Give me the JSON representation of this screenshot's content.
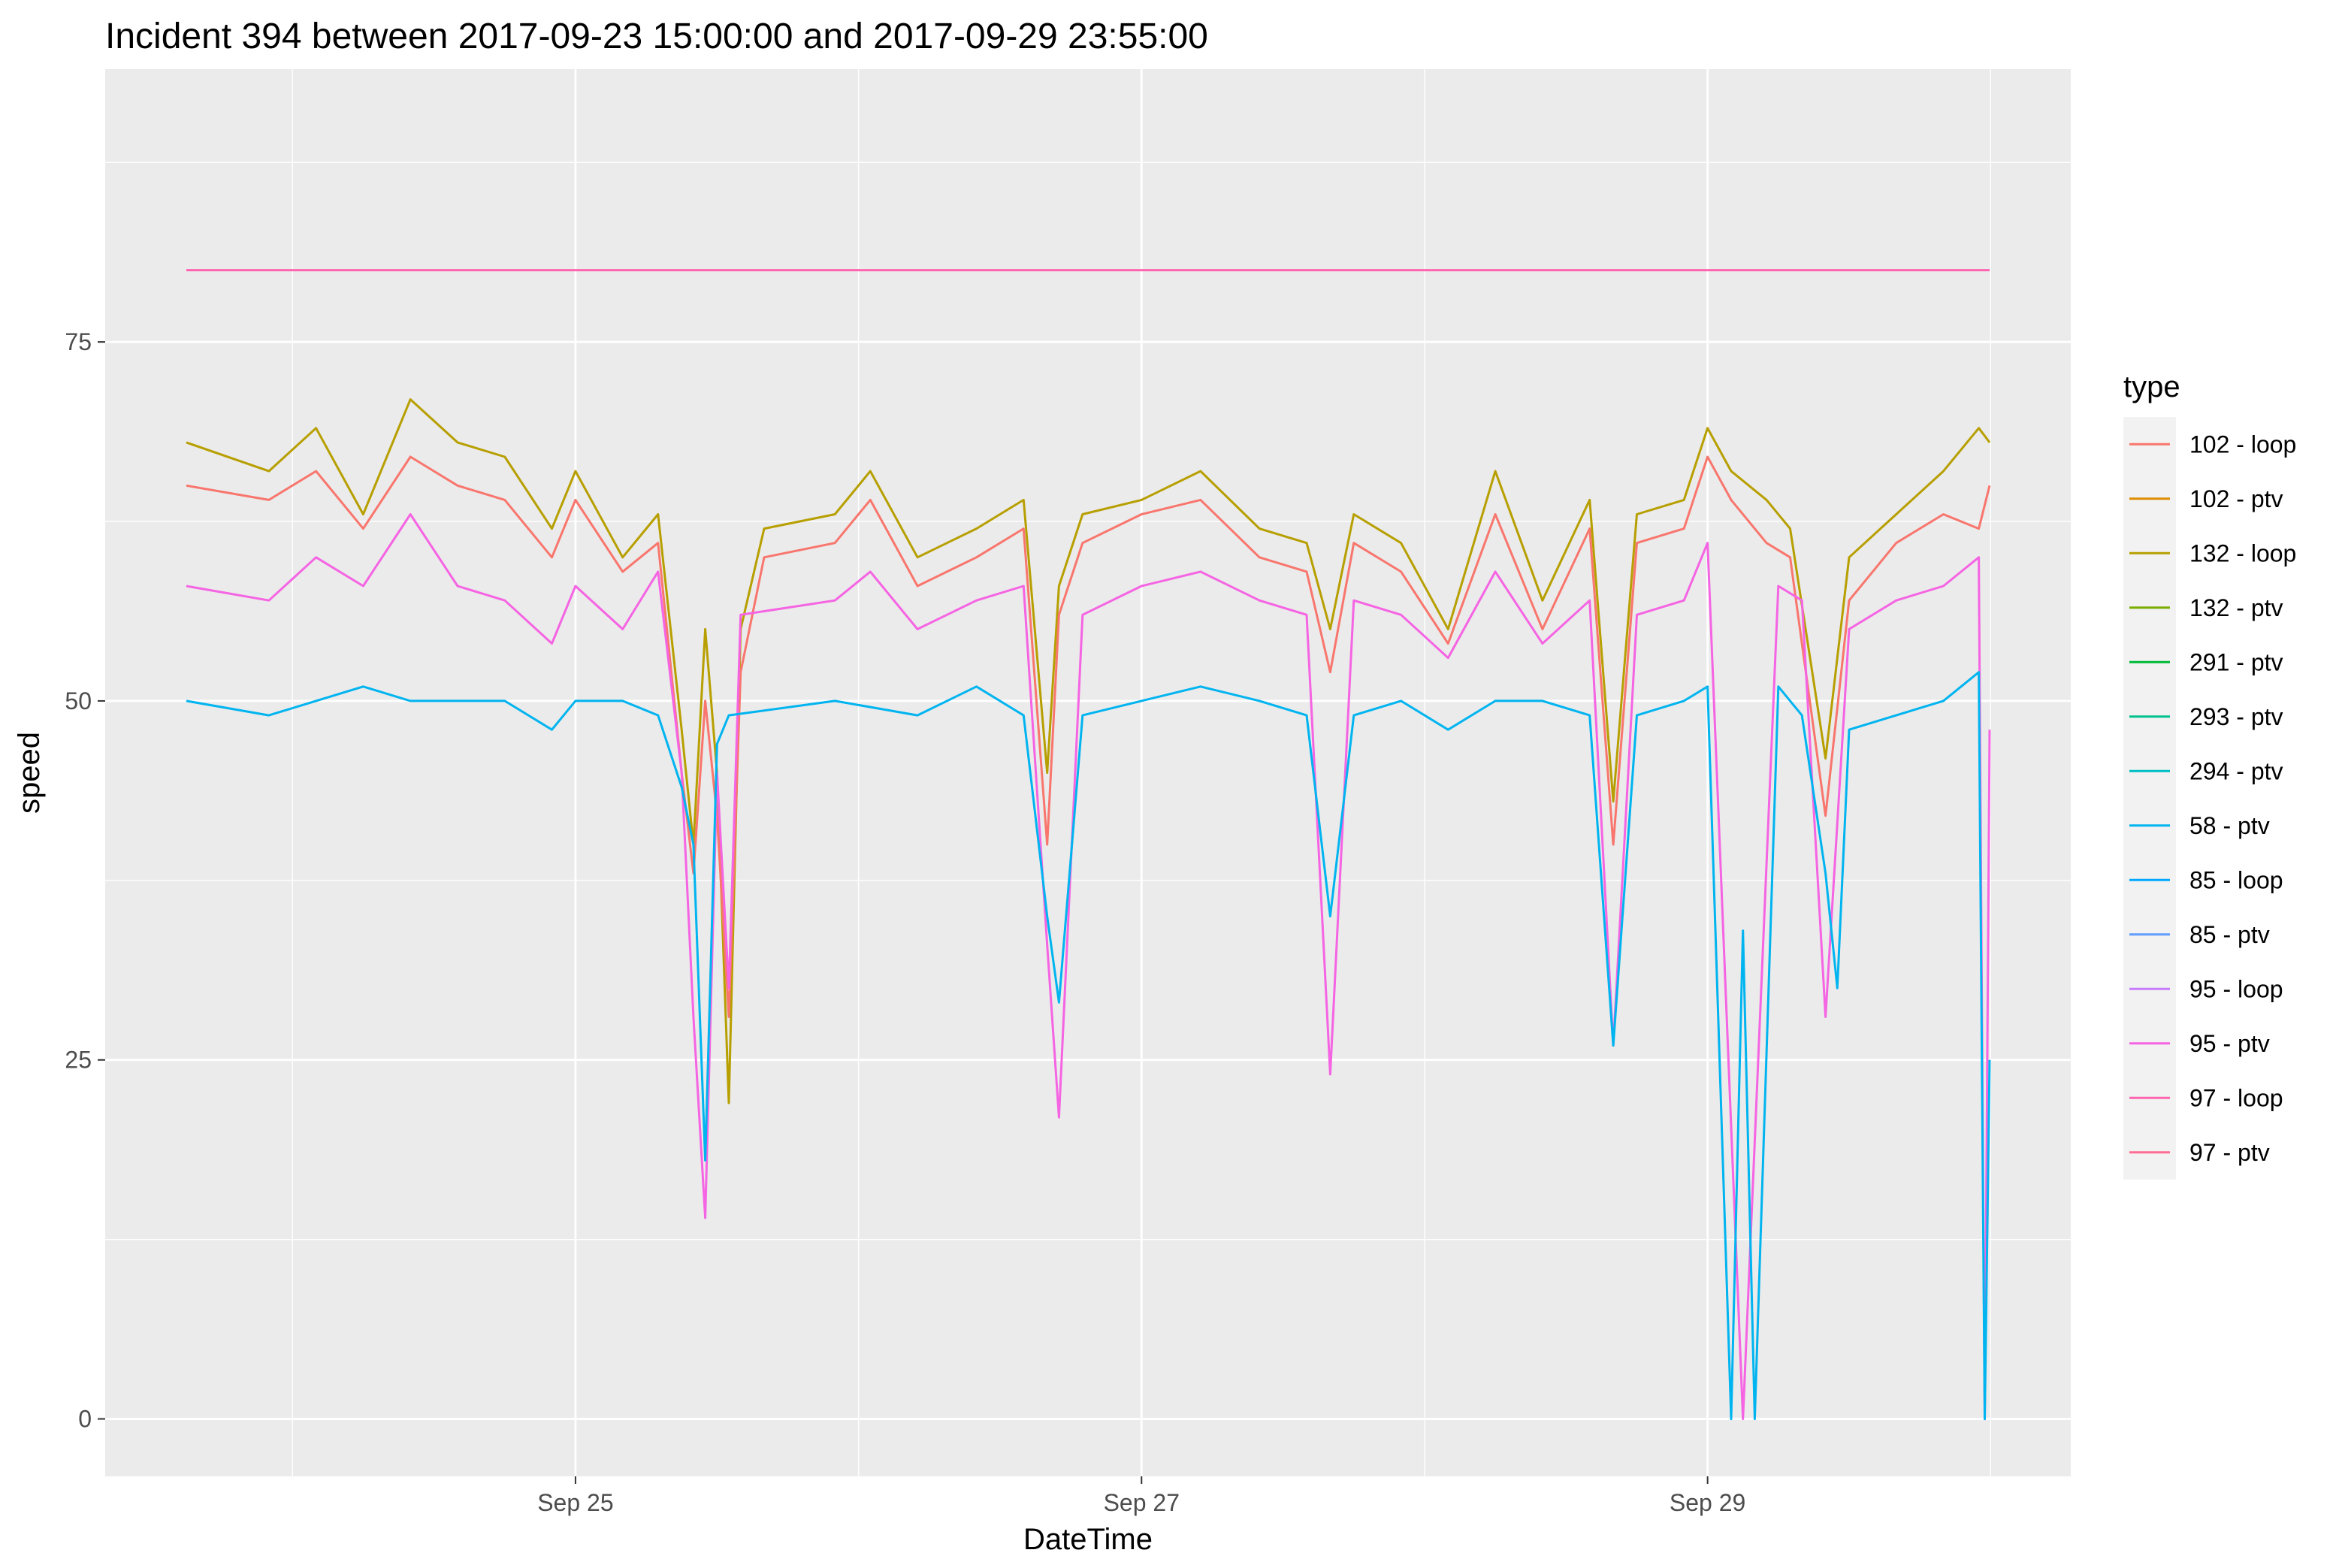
{
  "chart_data": {
    "type": "line",
    "title": "Incident 394 between 2017-09-23 15:00:00 and 2017-09-29 23:55:00",
    "xlabel": "DateTime",
    "ylabel": "speed",
    "x_range": [
      "2017-09-23 15:00:00",
      "2017-09-29 23:55:00"
    ],
    "ylim": [
      -4,
      94
    ],
    "yticks": [
      0,
      25,
      50,
      75
    ],
    "xticks": [
      {
        "date": "2017-09-25",
        "label": "Sep 25"
      },
      {
        "date": "2017-09-27",
        "label": "Sep 27"
      },
      {
        "date": "2017-09-29",
        "label": "Sep 29"
      }
    ],
    "grid": true,
    "background": "#ebebeb",
    "legend": {
      "title": "type",
      "position": "right",
      "entries": [
        {
          "label": "102 - loop",
          "color": "#F8766D"
        },
        {
          "label": "102 - ptv",
          "color": "#DE8C00"
        },
        {
          "label": "132 - loop",
          "color": "#B79F00"
        },
        {
          "label": "132 - ptv",
          "color": "#7CAE00"
        },
        {
          "label": "291 - ptv",
          "color": "#00BA38"
        },
        {
          "label": "293 - ptv",
          "color": "#00C08B"
        },
        {
          "label": "294 - ptv",
          "color": "#00BFC4"
        },
        {
          "label": "58 - ptv",
          "color": "#00B4F0"
        },
        {
          "label": "85 - loop",
          "color": "#00A9FF"
        },
        {
          "label": "85 - ptv",
          "color": "#619CFF"
        },
        {
          "label": "95 - loop",
          "color": "#C77CFF"
        },
        {
          "label": "95 - ptv",
          "color": "#F564E3"
        },
        {
          "label": "97 - loop",
          "color": "#FF64B0"
        },
        {
          "label": "97 - ptv",
          "color": "#FF6C91"
        }
      ]
    },
    "series": [
      {
        "name": "97 - ptv",
        "color": "#FF64B0",
        "points": [
          [
            "2017-09-23 15:00:00",
            80
          ],
          [
            "2017-09-29 23:55:00",
            80
          ]
        ]
      },
      {
        "name": "132 - loop",
        "color": "#B79F00",
        "points": [
          [
            "2017-09-23 15:00:00",
            68
          ],
          [
            "2017-09-23 22:00:00",
            66
          ],
          [
            "2017-09-24 02:00:00",
            69
          ],
          [
            "2017-09-24 06:00:00",
            63
          ],
          [
            "2017-09-24 10:00:00",
            71
          ],
          [
            "2017-09-24 14:00:00",
            68
          ],
          [
            "2017-09-24 18:00:00",
            67
          ],
          [
            "2017-09-24 22:00:00",
            62
          ],
          [
            "2017-09-25 00:00:00",
            66
          ],
          [
            "2017-09-25 04:00:00",
            60
          ],
          [
            "2017-09-25 07:00:00",
            63
          ],
          [
            "2017-09-25 09:00:00",
            48
          ],
          [
            "2017-09-25 10:00:00",
            40
          ],
          [
            "2017-09-25 11:00:00",
            55
          ],
          [
            "2017-09-25 12:00:00",
            45
          ],
          [
            "2017-09-25 13:00:00",
            22
          ],
          [
            "2017-09-25 14:00:00",
            55
          ],
          [
            "2017-09-25 16:00:00",
            62
          ],
          [
            "2017-09-25 22:00:00",
            63
          ],
          [
            "2017-09-26 01:00:00",
            66
          ],
          [
            "2017-09-26 05:00:00",
            60
          ],
          [
            "2017-09-26 10:00:00",
            62
          ],
          [
            "2017-09-26 14:00:00",
            64
          ],
          [
            "2017-09-26 16:00:00",
            45
          ],
          [
            "2017-09-26 17:00:00",
            58
          ],
          [
            "2017-09-26 19:00:00",
            63
          ],
          [
            "2017-09-27 00:00:00",
            64
          ],
          [
            "2017-09-27 05:00:00",
            66
          ],
          [
            "2017-09-27 10:00:00",
            62
          ],
          [
            "2017-09-27 14:00:00",
            61
          ],
          [
            "2017-09-27 16:00:00",
            55
          ],
          [
            "2017-09-27 18:00:00",
            63
          ],
          [
            "2017-09-27 22:00:00",
            61
          ],
          [
            "2017-09-28 02:00:00",
            55
          ],
          [
            "2017-09-28 06:00:00",
            66
          ],
          [
            "2017-09-28 10:00:00",
            57
          ],
          [
            "2017-09-28 14:00:00",
            64
          ],
          [
            "2017-09-28 16:00:00",
            43
          ],
          [
            "2017-09-28 18:00:00",
            63
          ],
          [
            "2017-09-28 22:00:00",
            64
          ],
          [
            "2017-09-29 00:00:00",
            69
          ],
          [
            "2017-09-29 02:00:00",
            66
          ],
          [
            "2017-09-29 05:00:00",
            64
          ],
          [
            "2017-09-29 07:00:00",
            62
          ],
          [
            "2017-09-29 10:00:00",
            46
          ],
          [
            "2017-09-29 12:00:00",
            60
          ],
          [
            "2017-09-29 16:00:00",
            63
          ],
          [
            "2017-09-29 20:00:00",
            66
          ],
          [
            "2017-09-29 23:00:00",
            69
          ],
          [
            "2017-09-29 23:55:00",
            68
          ]
        ]
      },
      {
        "name": "102 - loop",
        "color": "#F8766D",
        "points": [
          [
            "2017-09-23 15:00:00",
            65
          ],
          [
            "2017-09-23 22:00:00",
            64
          ],
          [
            "2017-09-24 02:00:00",
            66
          ],
          [
            "2017-09-24 06:00:00",
            62
          ],
          [
            "2017-09-24 10:00:00",
            67
          ],
          [
            "2017-09-24 14:00:00",
            65
          ],
          [
            "2017-09-24 18:00:00",
            64
          ],
          [
            "2017-09-24 22:00:00",
            60
          ],
          [
            "2017-09-25 00:00:00",
            64
          ],
          [
            "2017-09-25 04:00:00",
            59
          ],
          [
            "2017-09-25 07:00:00",
            61
          ],
          [
            "2017-09-25 09:00:00",
            45
          ],
          [
            "2017-09-25 10:00:00",
            38
          ],
          [
            "2017-09-25 11:00:00",
            50
          ],
          [
            "2017-09-25 12:00:00",
            42
          ],
          [
            "2017-09-25 13:00:00",
            28
          ],
          [
            "2017-09-25 14:00:00",
            52
          ],
          [
            "2017-09-25 16:00:00",
            60
          ],
          [
            "2017-09-25 22:00:00",
            61
          ],
          [
            "2017-09-26 01:00:00",
            64
          ],
          [
            "2017-09-26 05:00:00",
            58
          ],
          [
            "2017-09-26 10:00:00",
            60
          ],
          [
            "2017-09-26 14:00:00",
            62
          ],
          [
            "2017-09-26 16:00:00",
            40
          ],
          [
            "2017-09-26 17:00:00",
            56
          ],
          [
            "2017-09-26 19:00:00",
            61
          ],
          [
            "2017-09-27 00:00:00",
            63
          ],
          [
            "2017-09-27 05:00:00",
            64
          ],
          [
            "2017-09-27 10:00:00",
            60
          ],
          [
            "2017-09-27 14:00:00",
            59
          ],
          [
            "2017-09-27 16:00:00",
            52
          ],
          [
            "2017-09-27 18:00:00",
            61
          ],
          [
            "2017-09-27 22:00:00",
            59
          ],
          [
            "2017-09-28 02:00:00",
            54
          ],
          [
            "2017-09-28 06:00:00",
            63
          ],
          [
            "2017-09-28 10:00:00",
            55
          ],
          [
            "2017-09-28 14:00:00",
            62
          ],
          [
            "2017-09-28 16:00:00",
            40
          ],
          [
            "2017-09-28 18:00:00",
            61
          ],
          [
            "2017-09-28 22:00:00",
            62
          ],
          [
            "2017-09-29 00:00:00",
            67
          ],
          [
            "2017-09-29 02:00:00",
            64
          ],
          [
            "2017-09-29 05:00:00",
            61
          ],
          [
            "2017-09-29 07:00:00",
            60
          ],
          [
            "2017-09-29 10:00:00",
            42
          ],
          [
            "2017-09-29 12:00:00",
            57
          ],
          [
            "2017-09-29 16:00:00",
            61
          ],
          [
            "2017-09-29 20:00:00",
            63
          ],
          [
            "2017-09-29 23:00:00",
            62
          ],
          [
            "2017-09-29 23:55:00",
            65
          ]
        ]
      },
      {
        "name": "95 - ptv",
        "color": "#F564E3",
        "points": [
          [
            "2017-09-23 15:00:00",
            58
          ],
          [
            "2017-09-23 22:00:00",
            57
          ],
          [
            "2017-09-24 02:00:00",
            60
          ],
          [
            "2017-09-24 06:00:00",
            58
          ],
          [
            "2017-09-24 10:00:00",
            63
          ],
          [
            "2017-09-24 14:00:00",
            58
          ],
          [
            "2017-09-24 18:00:00",
            57
          ],
          [
            "2017-09-24 22:00:00",
            54
          ],
          [
            "2017-09-25 00:00:00",
            58
          ],
          [
            "2017-09-25 04:00:00",
            55
          ],
          [
            "2017-09-25 07:00:00",
            59
          ],
          [
            "2017-09-25 09:00:00",
            45
          ],
          [
            "2017-09-25 10:00:00",
            28
          ],
          [
            "2017-09-25 11:00:00",
            14
          ],
          [
            "2017-09-25 12:00:00",
            45
          ],
          [
            "2017-09-25 13:00:00",
            30
          ],
          [
            "2017-09-25 14:00:00",
            56
          ],
          [
            "2017-09-25 22:00:00",
            57
          ],
          [
            "2017-09-26 01:00:00",
            59
          ],
          [
            "2017-09-26 05:00:00",
            55
          ],
          [
            "2017-09-26 10:00:00",
            57
          ],
          [
            "2017-09-26 14:00:00",
            58
          ],
          [
            "2017-09-26 16:00:00",
            33
          ],
          [
            "2017-09-26 17:00:00",
            21
          ],
          [
            "2017-09-26 19:00:00",
            56
          ],
          [
            "2017-09-27 00:00:00",
            58
          ],
          [
            "2017-09-27 05:00:00",
            59
          ],
          [
            "2017-09-27 10:00:00",
            57
          ],
          [
            "2017-09-27 14:00:00",
            56
          ],
          [
            "2017-09-27 16:00:00",
            24
          ],
          [
            "2017-09-27 18:00:00",
            57
          ],
          [
            "2017-09-27 22:00:00",
            56
          ],
          [
            "2017-09-28 02:00:00",
            53
          ],
          [
            "2017-09-28 06:00:00",
            59
          ],
          [
            "2017-09-28 10:00:00",
            54
          ],
          [
            "2017-09-28 14:00:00",
            57
          ],
          [
            "2017-09-28 16:00:00",
            26
          ],
          [
            "2017-09-28 18:00:00",
            56
          ],
          [
            "2017-09-28 22:00:00",
            57
          ],
          [
            "2017-09-29 00:00:00",
            61
          ],
          [
            "2017-09-29 03:00:00",
            0
          ],
          [
            "2017-09-29 06:00:00",
            58
          ],
          [
            "2017-09-29 08:00:00",
            57
          ],
          [
            "2017-09-29 10:00:00",
            28
          ],
          [
            "2017-09-29 12:00:00",
            55
          ],
          [
            "2017-09-29 16:00:00",
            57
          ],
          [
            "2017-09-29 20:00:00",
            58
          ],
          [
            "2017-09-29 23:00:00",
            60
          ],
          [
            "2017-09-29 23:30:00",
            0
          ],
          [
            "2017-09-29 23:55:00",
            48
          ]
        ]
      },
      {
        "name": "58 - ptv",
        "color": "#00B4F0",
        "points": [
          [
            "2017-09-23 15:00:00",
            50
          ],
          [
            "2017-09-23 22:00:00",
            49
          ],
          [
            "2017-09-24 02:00:00",
            50
          ],
          [
            "2017-09-24 06:00:00",
            51
          ],
          [
            "2017-09-24 10:00:00",
            50
          ],
          [
            "2017-09-24 18:00:00",
            50
          ],
          [
            "2017-09-24 22:00:00",
            48
          ],
          [
            "2017-09-25 00:00:00",
            50
          ],
          [
            "2017-09-25 04:00:00",
            50
          ],
          [
            "2017-09-25 07:00:00",
            49
          ],
          [
            "2017-09-25 09:00:00",
            44
          ],
          [
            "2017-09-25 10:00:00",
            40
          ],
          [
            "2017-09-25 11:00:00",
            18
          ],
          [
            "2017-09-25 12:00:00",
            47
          ],
          [
            "2017-09-25 13:00:00",
            49
          ],
          [
            "2017-09-25 22:00:00",
            50
          ],
          [
            "2017-09-26 05:00:00",
            49
          ],
          [
            "2017-09-26 10:00:00",
            51
          ],
          [
            "2017-09-26 14:00:00",
            49
          ],
          [
            "2017-09-26 16:00:00",
            35
          ],
          [
            "2017-09-26 17:00:00",
            29
          ],
          [
            "2017-09-26 19:00:00",
            49
          ],
          [
            "2017-09-27 00:00:00",
            50
          ],
          [
            "2017-09-27 05:00:00",
            51
          ],
          [
            "2017-09-27 10:00:00",
            50
          ],
          [
            "2017-09-27 14:00:00",
            49
          ],
          [
            "2017-09-27 16:00:00",
            35
          ],
          [
            "2017-09-27 18:00:00",
            49
          ],
          [
            "2017-09-27 22:00:00",
            50
          ],
          [
            "2017-09-28 02:00:00",
            48
          ],
          [
            "2017-09-28 06:00:00",
            50
          ],
          [
            "2017-09-28 10:00:00",
            50
          ],
          [
            "2017-09-28 14:00:00",
            49
          ],
          [
            "2017-09-28 16:00:00",
            26
          ],
          [
            "2017-09-28 18:00:00",
            49
          ],
          [
            "2017-09-28 22:00:00",
            50
          ],
          [
            "2017-09-29 00:00:00",
            51
          ],
          [
            "2017-09-29 02:00:00",
            0
          ],
          [
            "2017-09-29 03:00:00",
            34
          ],
          [
            "2017-09-29 04:00:00",
            0
          ],
          [
            "2017-09-29 06:00:00",
            51
          ],
          [
            "2017-09-29 08:00:00",
            49
          ],
          [
            "2017-09-29 10:00:00",
            38
          ],
          [
            "2017-09-29 11:00:00",
            30
          ],
          [
            "2017-09-29 12:00:00",
            48
          ],
          [
            "2017-09-29 16:00:00",
            49
          ],
          [
            "2017-09-29 20:00:00",
            50
          ],
          [
            "2017-09-29 23:00:00",
            52
          ],
          [
            "2017-09-29 23:30:00",
            0
          ],
          [
            "2017-09-29 23:55:00",
            25
          ]
        ]
      }
    ]
  }
}
